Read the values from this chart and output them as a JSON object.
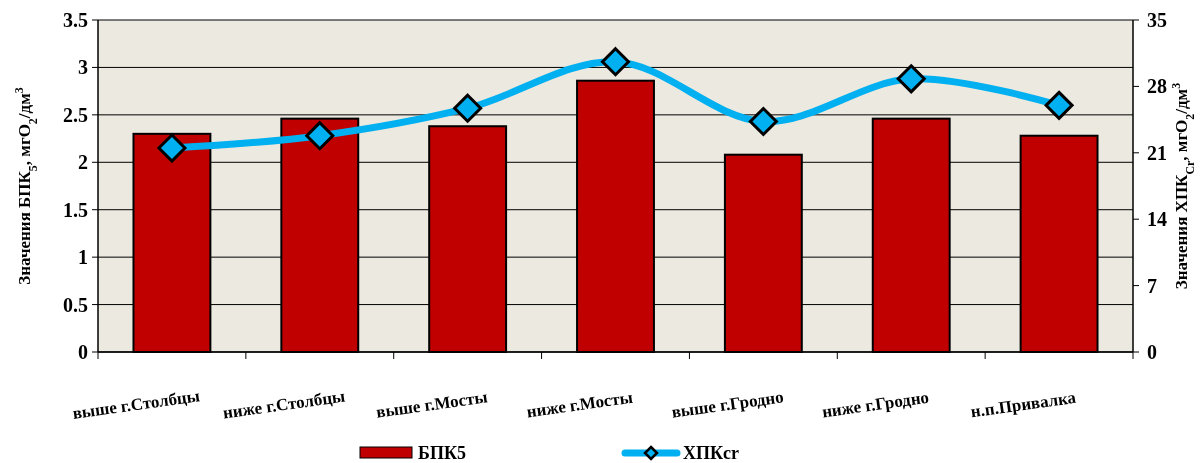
{
  "chart_data": {
    "type": "bar",
    "categories": [
      "выше г.Столбцы",
      "ниже г.Столбцы",
      "выше г.Мосты",
      "ниже г.Мосты",
      "выше г.Гродно",
      "ниже г.Гродно",
      "н.п.Привалка"
    ],
    "ylabel": "Значения БПК$_{5}$, мгО$_{2}$/дм$^{3}$",
    "y2label": "Значения ХПК$_{Cr}$, мгО$_{2}$/дм$^{3}$",
    "ylim": [
      0,
      3.5
    ],
    "yticks": [
      0,
      0.5,
      1,
      1.5,
      2,
      2.5,
      3,
      3.5
    ],
    "y2lim": [
      0,
      35
    ],
    "y2ticks": [
      0,
      7,
      14,
      21,
      28,
      35
    ],
    "grid": "y",
    "legend": "bottom",
    "series": [
      {
        "name": "БПК5",
        "color": "#c00000",
        "values": [
          2.3,
          2.46,
          2.38,
          2.86,
          2.08,
          2.46,
          2.28
        ]
      },
      {
        "name": "ХПКcr",
        "type": "line",
        "axis": "y2",
        "color": "#00b0f0",
        "marker": "diamond",
        "values": [
          21.5,
          22.8,
          25.7,
          30.6,
          24.3,
          28.8,
          26.0
        ]
      }
    ]
  }
}
